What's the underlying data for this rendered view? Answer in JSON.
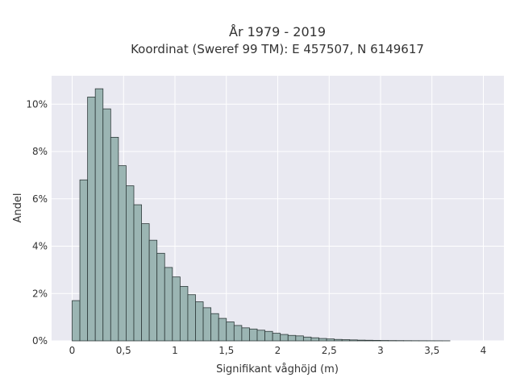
{
  "chart_data": {
    "type": "bar",
    "title": "År 1979 - 2019",
    "subtitle": "Koordinat (Sweref 99 TM): E 457507, N 6149617",
    "xlabel": "Signifikant våghöjd (m)",
    "ylabel": "Andel",
    "xlim": [
      -0.2,
      4.2
    ],
    "ylim": [
      0,
      11.2
    ],
    "x_ticks": [
      {
        "value": 0,
        "label": "0"
      },
      {
        "value": 0.5,
        "label": "0,5"
      },
      {
        "value": 1,
        "label": "1"
      },
      {
        "value": 1.5,
        "label": "1,5"
      },
      {
        "value": 2,
        "label": "2"
      },
      {
        "value": 2.5,
        "label": "2,5"
      },
      {
        "value": 3,
        "label": "3"
      },
      {
        "value": 3.5,
        "label": "3,5"
      },
      {
        "value": 4,
        "label": "4"
      }
    ],
    "y_ticks": [
      {
        "value": 0,
        "label": "0%"
      },
      {
        "value": 2,
        "label": "2%"
      },
      {
        "value": 4,
        "label": "4%"
      },
      {
        "value": 6,
        "label": "6%"
      },
      {
        "value": 8,
        "label": "8%"
      },
      {
        "value": 10,
        "label": "10%"
      }
    ],
    "bin_start": 0,
    "bin_width": 0.075,
    "values": [
      1.7,
      6.8,
      10.3,
      10.65,
      9.8,
      8.6,
      7.4,
      6.55,
      5.75,
      4.95,
      4.25,
      3.7,
      3.1,
      2.7,
      2.3,
      1.95,
      1.65,
      1.4,
      1.15,
      0.95,
      0.8,
      0.65,
      0.55,
      0.5,
      0.45,
      0.4,
      0.32,
      0.27,
      0.23,
      0.21,
      0.16,
      0.13,
      0.1,
      0.08,
      0.06,
      0.05,
      0.04,
      0.03,
      0.025,
      0.02,
      0.015,
      0.012,
      0.01,
      0.008,
      0.006,
      0.005,
      0.004,
      0.003,
      0.002
    ],
    "grid": true,
    "colors": {
      "bar_fill": "#9bb5b3",
      "bar_stroke": "#2e3a3a",
      "plot_background": "#e9e9f1",
      "grid": "#ffffff"
    }
  }
}
